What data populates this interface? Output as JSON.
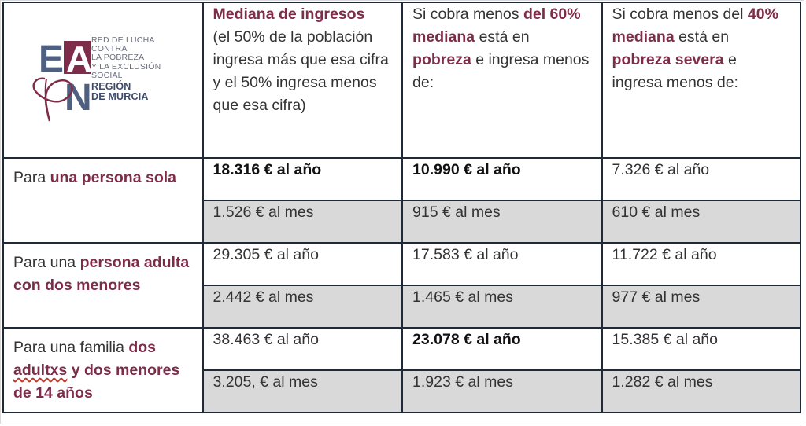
{
  "logo": {
    "letters": [
      "E",
      "A",
      "P",
      "N"
    ],
    "org_lines": [
      "RED DE LUCHA",
      "CONTRA",
      "LA POBREZA",
      "Y LA EXCLUSIÓN",
      "SOCIAL"
    ],
    "region_lines": [
      "REGIÓN",
      "DE MURCIA"
    ],
    "colors": {
      "navy": "#4f5f80",
      "maroon": "#7d2d4a"
    }
  },
  "headers": {
    "col1": {
      "title": "Mediana de ingresos",
      "body": "(el 50% de la población ingresa más que esa cifra y el 50% ingresa menos que esa cifra)"
    },
    "col2": {
      "pre": "Si cobra menos ",
      "accent1": "del 60% mediana",
      "mid": " está en ",
      "accent2": "pobreza",
      "post": " e ingresa menos de:"
    },
    "col3": {
      "pre": "Si cobra menos del ",
      "accent1": "40% mediana",
      "mid": " está en ",
      "accent2": "pobreza severa",
      "post": " e ingresa menos de:"
    }
  },
  "rows": [
    {
      "label_pre": "Para ",
      "label_accent": "una persona sola",
      "annual": [
        "18.316 € al año",
        "10.990 € al año",
        "7.326 € al año"
      ],
      "monthly": [
        "1.526 € al mes",
        "915 € al mes",
        "610 € al mes"
      ]
    },
    {
      "label_pre": "Para una ",
      "label_accent": "persona adulta con dos menores",
      "annual": [
        "29.305 € al año",
        "17.583 € al año",
        "11.722 € al año"
      ],
      "monthly": [
        "2.442 € al mes",
        "1.465 € al mes",
        "977 € al mes"
      ]
    },
    {
      "label_pre": "Para una familia ",
      "label_accent_a": "dos",
      "label_accent_b": "adultxs",
      "label_accent_c": " y dos menores de 14 años",
      "annual": [
        "38.463 € al año",
        "23.078 € al año",
        "15.385 € al año"
      ],
      "monthly": [
        "3.205, € al mes",
        "1.923 € al mes",
        "1.282 € al mes"
      ]
    }
  ],
  "colors": {
    "accent": "#7d2d4a",
    "grey_row": "#d9d9d9",
    "border": "#1e2a3a"
  }
}
